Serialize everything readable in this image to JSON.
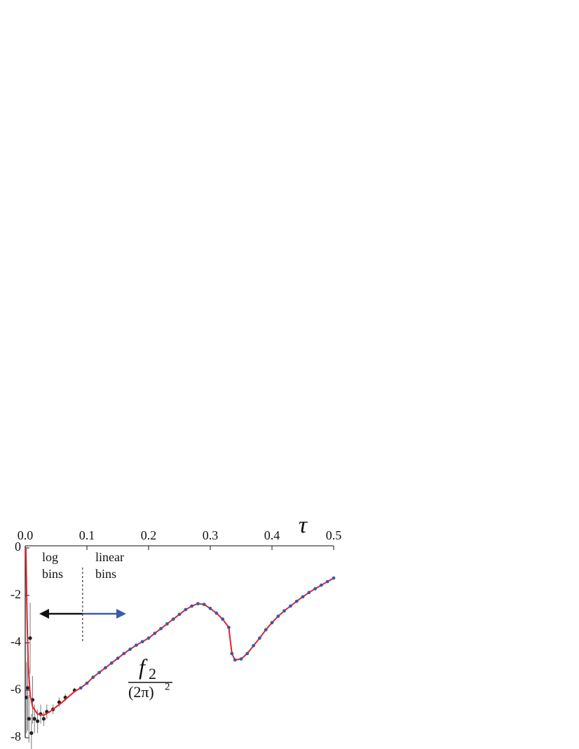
{
  "chart_data": {
    "type": "scatter",
    "xlabel": "τ",
    "ylabel": {
      "numerator_base": "f",
      "numerator_sub": "2",
      "denominator_base": "(2π)",
      "denominator_sup": "2"
    },
    "annotations": {
      "left_top": "log",
      "left_bottom": "bins",
      "right_top": "linear",
      "right_bottom": "bins",
      "split": 0.093,
      "left_color": "#111111",
      "right_color": "#3a5ba8"
    },
    "xlim": [
      0,
      0.5
    ],
    "ylim": [
      -8,
      0
    ],
    "xticks": [
      {
        "value": 0,
        "label": "0.0"
      },
      0.1,
      0.2,
      0.3,
      0.4,
      0.5
    ],
    "yticks": [
      0,
      -2,
      -4,
      -6,
      -8
    ],
    "series": [
      {
        "name": "log bins",
        "color": "#222222",
        "x": [
          0.002,
          0.004,
          0.006,
          0.008,
          0.01,
          0.012,
          0.015,
          0.02,
          0.025,
          0.03,
          0.035,
          0.045,
          0.055,
          0.065,
          0.08
        ],
        "values": [
          -6.3,
          -5.9,
          -7.2,
          -3.8,
          -7.8,
          -6.4,
          -7.2,
          -7.3,
          -7.0,
          -7.2,
          -6.9,
          -6.8,
          -6.5,
          -6.3,
          -6.0
        ],
        "errors": [
          1.5,
          1.8,
          1.0,
          1.5,
          0.8,
          1.0,
          0.6,
          0.5,
          0.4,
          0.3,
          0.3,
          0.2,
          0.2,
          0.15,
          0.1
        ]
      },
      {
        "name": "linear bins",
        "color": "#3a5ba8",
        "line_color": "#e8202a",
        "x": [
          0.09,
          0.1,
          0.11,
          0.12,
          0.13,
          0.14,
          0.15,
          0.16,
          0.17,
          0.18,
          0.19,
          0.2,
          0.21,
          0.22,
          0.23,
          0.24,
          0.25,
          0.26,
          0.27,
          0.28,
          0.29,
          0.3,
          0.31,
          0.32,
          0.33,
          0.335,
          0.34,
          0.35,
          0.36,
          0.37,
          0.38,
          0.39,
          0.4,
          0.41,
          0.42,
          0.43,
          0.44,
          0.45,
          0.46,
          0.47,
          0.48,
          0.49,
          0.5
        ],
        "values": [
          -5.9,
          -5.7,
          -5.45,
          -5.25,
          -5.05,
          -4.85,
          -4.65,
          -4.45,
          -4.27,
          -4.1,
          -3.95,
          -3.8,
          -3.6,
          -3.4,
          -3.2,
          -3.0,
          -2.8,
          -2.6,
          -2.45,
          -2.35,
          -2.38,
          -2.55,
          -2.75,
          -3.0,
          -3.35,
          -4.45,
          -4.72,
          -4.68,
          -4.45,
          -4.12,
          -3.8,
          -3.45,
          -3.15,
          -2.88,
          -2.65,
          -2.45,
          -2.25,
          -2.06,
          -1.88,
          -1.72,
          -1.57,
          -1.42,
          -1.27
        ]
      },
      {
        "name": "fit",
        "color": "#e8202a",
        "x": [
          0.001,
          0.003,
          0.005,
          0.008,
          0.012,
          0.02,
          0.03,
          0.04,
          0.06,
          0.08,
          0.09
        ],
        "values": [
          0,
          -3,
          -5,
          -6.2,
          -6.7,
          -7.0,
          -7.05,
          -6.9,
          -6.5,
          -6.05,
          -5.9
        ]
      }
    ]
  }
}
